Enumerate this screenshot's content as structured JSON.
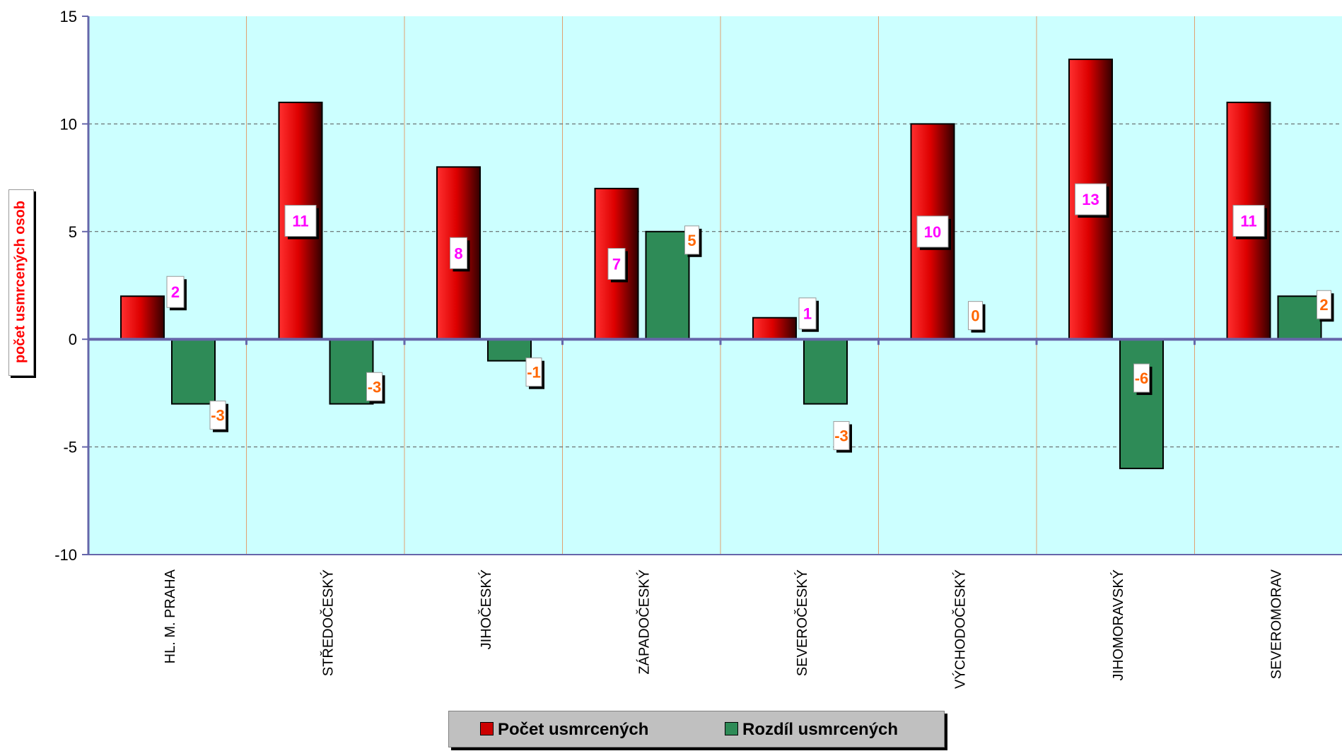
{
  "chart_data": {
    "type": "bar",
    "ylabel": "počet usmrcených osob",
    "ylim": [
      -10,
      15
    ],
    "yticks": [
      15,
      10,
      5,
      0,
      -5,
      -10
    ],
    "grid": true,
    "legend_position": "bottom",
    "categories": [
      "HL. M. PRAHA",
      "STŘEDOČESKÝ",
      "JIHOČESKÝ",
      "ZÁPADOČESKÝ",
      "SEVEROČESKÝ",
      "VÝCHODOČESKÝ",
      "JIHOMORAVSKÝ",
      "SEVEROMORAV"
    ],
    "series": [
      {
        "name": "Počet usmrcených",
        "values": [
          2,
          11,
          8,
          7,
          1,
          10,
          13,
          11
        ],
        "color": "#cc0000"
      },
      {
        "name": "Rozdíl usmrcených",
        "values": [
          -3,
          -3,
          -1,
          5,
          -3,
          0,
          -6,
          2
        ],
        "color": "#2e8b57"
      }
    ],
    "colors": {
      "plot_background": "#ccffff",
      "series1_label_text": "#ff00ff",
      "series2_label_text": "#ff6600",
      "axis_line": "#6666aa"
    }
  }
}
